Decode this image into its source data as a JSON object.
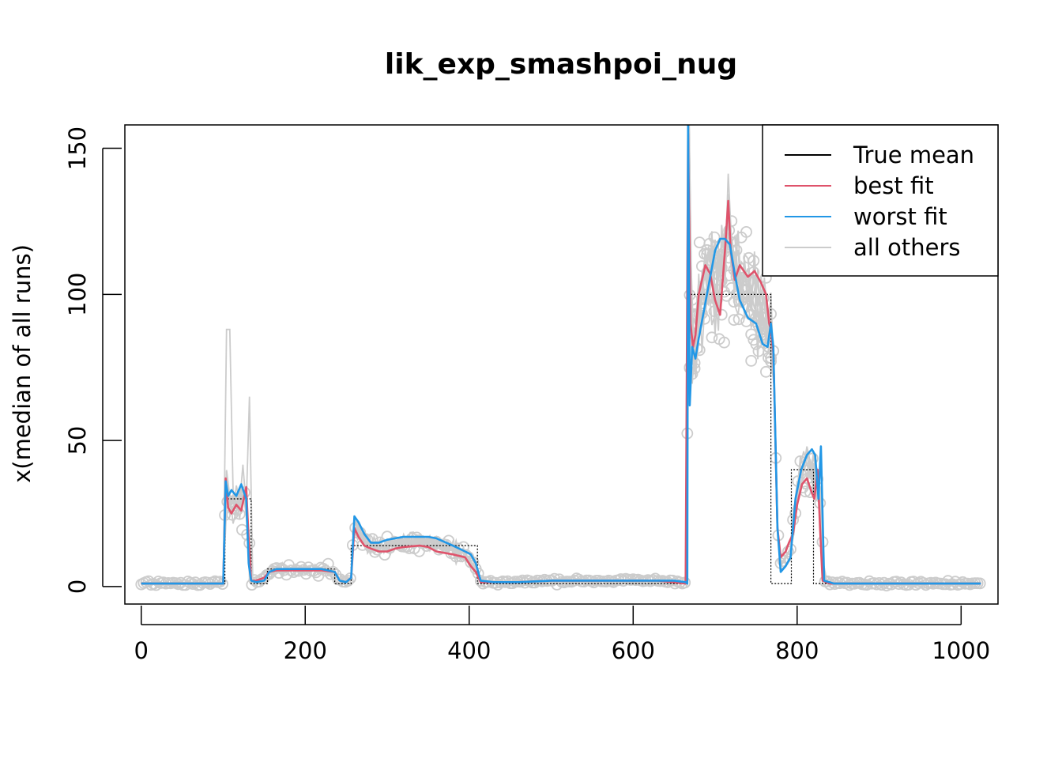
{
  "chart_data": {
    "type": "line",
    "title": "lik_exp_smashpoi_nug",
    "xlabel": "",
    "ylabel": "x(median of all runs)",
    "xlim": [
      -20,
      1045
    ],
    "ylim": [
      -6,
      158
    ],
    "x_ticks": [
      0,
      200,
      400,
      600,
      800,
      1000
    ],
    "y_ticks": [
      0,
      50,
      100,
      150
    ],
    "grid": false,
    "legend_position": "top-right",
    "colors": {
      "true_mean": "#000000",
      "best_fit": "#DF536B",
      "worst_fit": "#2297E6",
      "others": "#CCCCCC"
    },
    "series": [
      {
        "name": "True mean",
        "x": [
          0,
          102,
          102,
          134,
          134,
          154,
          154,
          236,
          236,
          256,
          256,
          410,
          410,
          666,
          666,
          768,
          768,
          793,
          793,
          820,
          820,
          1024
        ],
        "y": [
          1,
          1,
          30,
          30,
          1,
          1,
          6,
          6,
          1,
          1,
          14,
          14,
          1,
          1,
          100,
          100,
          1,
          1,
          40,
          40,
          1,
          1
        ]
      },
      {
        "name": "best fit",
        "x": [
          0,
          60,
          100,
          103,
          106,
          110,
          116,
          122,
          128,
          131,
          134,
          140,
          150,
          156,
          165,
          180,
          200,
          220,
          236,
          242,
          250,
          256,
          260,
          265,
          272,
          280,
          290,
          300,
          310,
          320,
          340,
          350,
          360,
          380,
          395,
          402,
          408,
          414,
          430,
          460,
          500,
          550,
          600,
          630,
          650,
          664,
          667,
          670,
          673,
          676,
          680,
          688,
          694,
          700,
          706,
          712,
          716,
          719,
          724,
          730,
          740,
          748,
          756,
          762,
          766,
          768,
          771,
          776,
          780,
          786,
          790,
          795,
          800,
          806,
          812,
          818,
          821,
          825,
          828,
          831,
          840,
          880,
          950,
          1024
        ],
        "y": [
          1,
          1,
          1,
          37,
          27,
          25,
          28,
          26,
          34,
          16,
          2,
          2,
          3,
          5,
          5.5,
          5.5,
          5.5,
          5.5,
          5,
          2,
          1.5,
          3,
          20,
          17,
          14,
          13,
          12,
          12,
          13,
          13.5,
          14,
          13.5,
          12,
          11,
          10,
          7,
          5,
          1.5,
          1.5,
          1.5,
          2,
          2,
          2,
          2,
          1.5,
          1,
          155,
          90,
          82,
          86,
          100,
          110,
          107,
          98,
          93,
          115,
          132,
          115,
          105,
          110,
          106,
          108,
          104,
          100,
          90,
          88,
          80,
          20,
          10,
          12,
          15,
          18,
          28,
          35,
          37,
          32,
          30,
          40,
          20,
          2,
          1,
          1,
          1,
          1
        ]
      },
      {
        "name": "worst fit",
        "x": [
          0,
          60,
          100,
          103,
          106,
          110,
          116,
          122,
          128,
          131,
          134,
          140,
          150,
          156,
          165,
          180,
          200,
          220,
          236,
          242,
          250,
          256,
          260,
          265,
          272,
          280,
          290,
          300,
          320,
          340,
          350,
          360,
          380,
          395,
          402,
          408,
          414,
          430,
          460,
          500,
          550,
          600,
          630,
          650,
          664,
          666,
          667,
          669,
          672,
          676,
          680,
          690,
          700,
          706,
          712,
          718,
          724,
          730,
          740,
          750,
          758,
          764,
          768,
          771,
          776,
          780,
          786,
          792,
          798,
          805,
          812,
          818,
          822,
          826,
          829,
          833,
          845,
          900,
          1024
        ],
        "y": [
          1,
          1,
          1,
          36,
          31,
          33,
          31,
          35,
          30,
          8,
          2,
          1.5,
          2,
          5,
          6,
          6,
          6,
          6,
          5,
          2,
          1.5,
          3,
          24,
          22,
          18,
          15,
          15,
          16,
          17,
          17,
          17,
          16.5,
          14,
          12,
          11,
          8,
          2,
          1.5,
          1.5,
          2,
          2,
          2,
          2,
          2,
          1.5,
          1,
          160,
          62,
          82,
          78,
          85,
          100,
          115,
          119,
          119,
          117,
          107,
          98,
          92,
          90,
          83,
          82,
          90,
          82,
          20,
          5,
          7,
          10,
          30,
          40,
          45,
          47,
          45,
          30,
          48,
          2,
          1,
          1,
          1
        ]
      }
    ]
  }
}
